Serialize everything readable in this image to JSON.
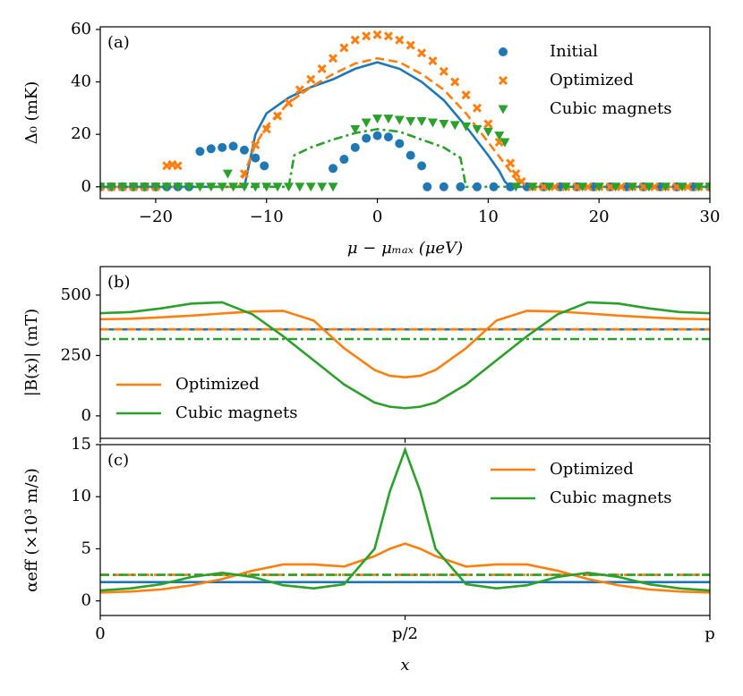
{
  "chart_data": [
    {
      "type": "scatter",
      "annotation": "(a)",
      "xlabel": "μ − μₘₐₓ (μeV)",
      "ylabel": "Δ₀ (mK)",
      "xlim": [
        -25,
        30
      ],
      "ylim": [
        -4.5,
        61
      ],
      "xticks": [
        {
          "value": -20,
          "label": "−20"
        },
        {
          "value": -10,
          "label": "−10"
        },
        0,
        10,
        20,
        30
      ],
      "yticks": [
        0,
        20,
        40,
        60
      ],
      "legend": "upper right",
      "series": [
        {
          "color": "#1f77b4",
          "dash": "solid",
          "x": [
            -25,
            -12,
            -11.5,
            -11,
            -10,
            -8,
            -6,
            -4,
            -2,
            0,
            2,
            4,
            6,
            8,
            10,
            11,
            11.5,
            12,
            30
          ],
          "values": [
            0,
            0,
            10,
            20,
            28,
            34,
            38,
            41,
            45,
            47.5,
            45,
            40,
            33,
            23,
            12,
            6,
            2,
            0,
            0
          ]
        },
        {
          "color": "#ff7f0e",
          "dash": "dashed",
          "x": [
            -25,
            -12.5,
            -12,
            -11,
            -10,
            -8,
            -6,
            -4,
            -2,
            0,
            2,
            4,
            6,
            8,
            10,
            12,
            12.5,
            13,
            30
          ],
          "values": [
            0,
            0,
            5,
            16,
            23,
            32,
            38,
            43,
            47,
            49,
            47.5,
            43,
            37,
            28,
            17,
            6,
            3,
            0,
            0
          ]
        },
        {
          "color": "#2ca02c",
          "dash": "dashdot",
          "x": [
            -25,
            -8,
            -7.5,
            -6,
            -4,
            -2,
            0,
            2,
            4,
            6,
            7.5,
            8,
            30
          ],
          "values": [
            0,
            0,
            12,
            15,
            18,
            20.5,
            22,
            21,
            18,
            15,
            11,
            0,
            0
          ]
        },
        {
          "name": "Initial",
          "color": "#1f77b4",
          "marker": "circle",
          "x": [
            -25,
            -24,
            -23,
            -22,
            -21,
            -20,
            -19,
            -18,
            -17,
            -16,
            -15,
            -14,
            -13,
            -12,
            -11,
            -10.2,
            -4,
            -3,
            -2,
            -1,
            0,
            1,
            2,
            3,
            4,
            4.5,
            6,
            7.5,
            9,
            10.5,
            12,
            13.5,
            15,
            16.5,
            18,
            19.5,
            21,
            22.5,
            24,
            25.5,
            27,
            28.5,
            30
          ],
          "values": [
            0,
            0,
            0,
            0,
            0,
            0,
            0,
            0,
            0,
            13.5,
            14.5,
            15,
            15.5,
            14,
            11,
            8,
            7,
            10.5,
            15,
            18.5,
            19.5,
            19,
            16.5,
            12,
            8,
            0,
            0,
            0,
            0,
            0,
            0,
            0,
            0,
            0,
            0,
            0,
            0,
            0,
            0,
            0,
            0,
            0,
            0
          ]
        },
        {
          "name": "Optimized",
          "color": "#ff7f0e",
          "marker": "x",
          "x": [
            -25,
            -24,
            -23,
            -22,
            -21,
            -20,
            -19,
            -18.5,
            -18,
            -12,
            -11,
            -10,
            -9,
            -8,
            -7,
            -6,
            -5,
            -4,
            -3,
            -2,
            -1,
            0,
            1,
            2,
            3,
            4,
            5,
            6,
            7,
            8,
            9,
            10,
            11,
            12,
            12.5,
            13,
            14,
            15,
            16,
            17,
            18,
            19,
            20,
            21,
            22,
            23,
            24,
            25,
            26,
            27,
            28,
            29,
            30
          ],
          "values": [
            0,
            0,
            0,
            0,
            0,
            0,
            8,
            8.5,
            8,
            5,
            16,
            22,
            27,
            32,
            37,
            41,
            45,
            49,
            53,
            56,
            57.5,
            58,
            57.5,
            56,
            54,
            51,
            48,
            44,
            40,
            35,
            30,
            24,
            17,
            9,
            5,
            2,
            0,
            0,
            0,
            0,
            0,
            0,
            0,
            0,
            0,
            0,
            0,
            0,
            0,
            0,
            0,
            0,
            0
          ]
        },
        {
          "name": "Cubic magnets",
          "color": "#2ca02c",
          "marker": "triangle",
          "x": [
            -25,
            -24,
            -23,
            -22,
            -21,
            -20,
            -19,
            -18,
            -17,
            -16,
            -15,
            -14,
            -13.5,
            -13,
            -12,
            -11,
            -10,
            -9,
            -8,
            -7,
            -6,
            -5,
            -4,
            -2,
            -1,
            0,
            1,
            2,
            3,
            4,
            5,
            6,
            7,
            8,
            9,
            10,
            11,
            11.5,
            12.5,
            14,
            15.5,
            17,
            18.5,
            20,
            21.5,
            23,
            24.5,
            26,
            27.5,
            29,
            30
          ],
          "values": [
            0,
            0,
            0,
            0,
            0,
            0,
            0,
            0,
            0,
            0,
            0,
            0,
            5,
            0,
            0,
            0,
            0,
            0,
            0,
            0,
            0,
            0,
            0,
            22,
            24.5,
            26,
            26,
            25.5,
            25,
            25,
            24.5,
            24,
            23.5,
            23,
            22,
            21,
            19.5,
            17,
            0,
            0,
            0,
            0,
            0,
            0,
            0,
            0,
            0,
            0,
            0,
            0,
            0
          ]
        }
      ]
    },
    {
      "type": "line",
      "annotation": "(b)",
      "ylabel": "|B(x)| (mT)",
      "xlim": [
        0,
        1
      ],
      "ylim": [
        -93,
        618
      ],
      "xticks": [
        0,
        0.5,
        1
      ],
      "xticklabels": false,
      "yticks": [
        0,
        250,
        500
      ],
      "legend": "lower left",
      "x": [
        0,
        0.05,
        0.1,
        0.15,
        0.2,
        0.25,
        0.3,
        0.35,
        0.4,
        0.45,
        0.475,
        0.5,
        0.525,
        0.55,
        0.6,
        0.65,
        0.7,
        0.75,
        0.8,
        0.85,
        0.9,
        0.95,
        1
      ],
      "series": [
        {
          "color": "#1f77b4",
          "dash": "solid",
          "x": [
            0,
            1
          ],
          "values": [
            358,
            358
          ]
        },
        {
          "color": "#ff7f0e",
          "dash": "dashed",
          "x": [
            0,
            1
          ],
          "values": [
            358,
            358
          ]
        },
        {
          "color": "#2ca02c",
          "dash": "dashdot",
          "x": [
            0,
            1
          ],
          "values": [
            318,
            318
          ]
        },
        {
          "name": "Optimized",
          "color": "#ff7f0e",
          "dash": "solid",
          "values": [
            400,
            402,
            408,
            415,
            424,
            432,
            435,
            395,
            280,
            190,
            166,
            160,
            166,
            190,
            280,
            395,
            435,
            432,
            424,
            415,
            408,
            402,
            400
          ]
        },
        {
          "name": "Cubic magnets",
          "color": "#2ca02c",
          "dash": "solid",
          "values": [
            425,
            430,
            445,
            465,
            470,
            420,
            330,
            230,
            130,
            55,
            38,
            32,
            38,
            55,
            130,
            230,
            330,
            420,
            470,
            465,
            445,
            430,
            425
          ]
        }
      ]
    },
    {
      "type": "line",
      "annotation": "(c)",
      "xlabel": "x",
      "ylabel": "αeff (×10³ m/s)",
      "xlim": [
        0,
        1
      ],
      "ylim": [
        -1.4,
        15
      ],
      "xticks": [
        0,
        {
          "value": 0.5,
          "label": "p/2"
        },
        {
          "value": 1,
          "label": "p"
        }
      ],
      "yticks": [
        0,
        5,
        10,
        15
      ],
      "legend": "upper right",
      "x": [
        0,
        0.05,
        0.1,
        0.15,
        0.2,
        0.25,
        0.3,
        0.35,
        0.4,
        0.45,
        0.475,
        0.5,
        0.525,
        0.55,
        0.6,
        0.65,
        0.7,
        0.75,
        0.8,
        0.85,
        0.9,
        0.95,
        1
      ],
      "series": [
        {
          "color": "#1f77b4",
          "dash": "solid",
          "x": [
            0,
            1
          ],
          "values": [
            1.8,
            1.8
          ]
        },
        {
          "color": "#ff7f0e",
          "dash": "dashed",
          "x": [
            0,
            1
          ],
          "values": [
            2.5,
            2.5
          ]
        },
        {
          "color": "#2ca02c",
          "dash": "dashdot",
          "x": [
            0,
            1
          ],
          "values": [
            2.5,
            2.5
          ]
        },
        {
          "name": "Optimized",
          "color": "#ff7f0e",
          "dash": "solid",
          "values": [
            0.8,
            0.9,
            1.1,
            1.5,
            2.1,
            2.9,
            3.5,
            3.5,
            3.3,
            4.3,
            5.0,
            5.5,
            5.0,
            4.3,
            3.3,
            3.5,
            3.5,
            2.9,
            2.1,
            1.5,
            1.1,
            0.9,
            0.8
          ]
        },
        {
          "name": "Cubic magnets",
          "color": "#2ca02c",
          "dash": "solid",
          "values": [
            1.0,
            1.2,
            1.6,
            2.3,
            2.7,
            2.3,
            1.5,
            1.2,
            1.6,
            5.0,
            10.5,
            14.5,
            10.5,
            5.0,
            1.6,
            1.2,
            1.5,
            2.3,
            2.7,
            2.3,
            1.6,
            1.2,
            1.0
          ]
        }
      ]
    }
  ]
}
